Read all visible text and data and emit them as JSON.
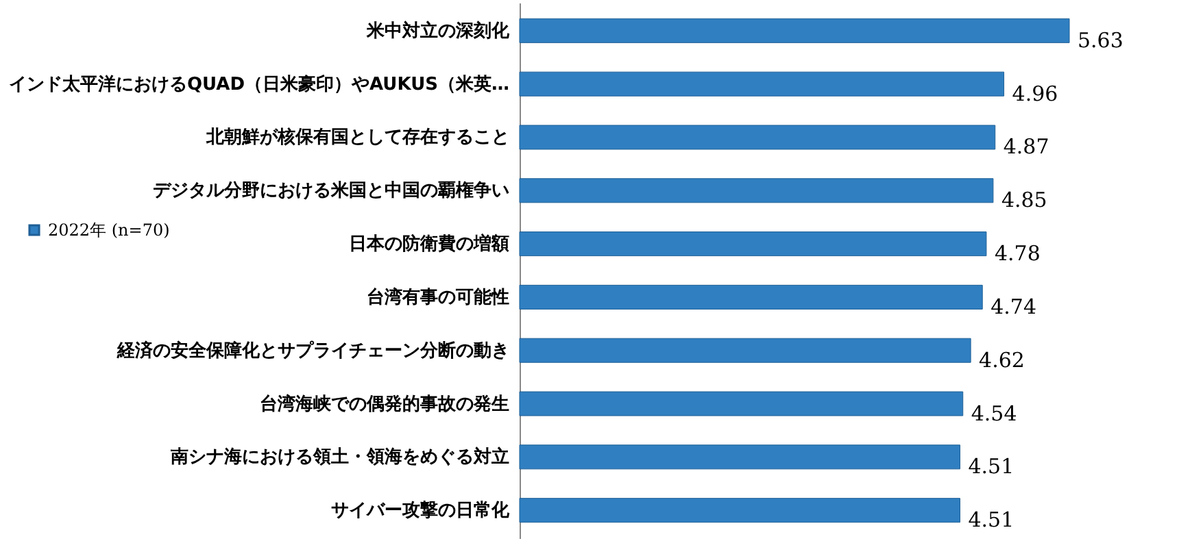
{
  "chart_data": {
    "type": "bar",
    "orientation": "horizontal",
    "data_labels": true,
    "legend": "left",
    "categories": [
      "米中対立の深刻化",
      "インド太平洋におけるQUAD（日米豪印）やAUKUS（米英…",
      "北朝鮮が核保有国として存在すること",
      "デジタル分野における米国と中国の覇権争い",
      "日本の防衛費の増額",
      "台湾有事の可能性",
      "経済の安全保障化とサプライチェーン分断の動き",
      "台湾海峡での偶発的事故の発生",
      "南シナ海における領土・領海をめぐる対立",
      "サイバー攻撃の日常化"
    ],
    "series": [
      {
        "name": "2022年 (n=70)",
        "color": "#2f7fc1",
        "values": [
          5.63,
          4.96,
          4.87,
          4.85,
          4.78,
          4.74,
          4.62,
          4.54,
          4.51,
          4.51
        ]
      }
    ]
  }
}
